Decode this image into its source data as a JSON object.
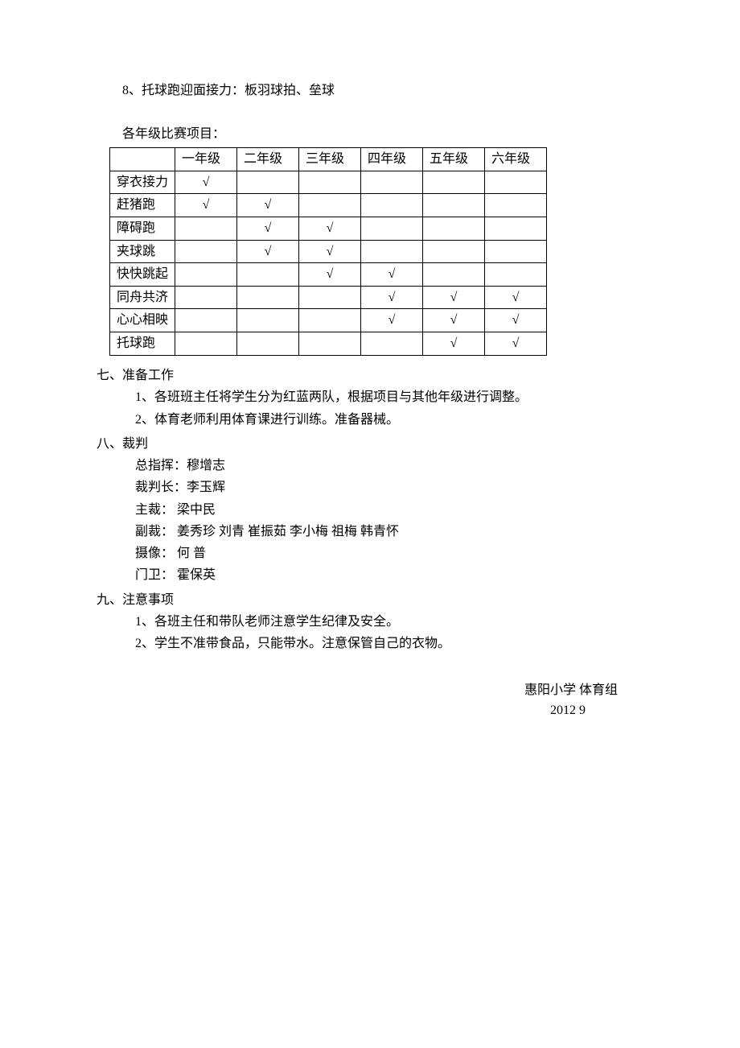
{
  "item8": "8、托球跑迎面接力：板羽球拍、垒球",
  "table_intro": "各年级比赛项目：",
  "table": {
    "headers": [
      "",
      "一年级",
      "二年级",
      "三年级",
      "四年级",
      "五年级",
      "六年级"
    ],
    "rows": [
      {
        "label": "穿衣接力",
        "checks": [
          true,
          false,
          false,
          false,
          false,
          false
        ]
      },
      {
        "label": "赶猪跑",
        "checks": [
          true,
          true,
          false,
          false,
          false,
          false
        ]
      },
      {
        "label": "障碍跑",
        "checks": [
          false,
          true,
          true,
          false,
          false,
          false
        ]
      },
      {
        "label": "夹球跳",
        "checks": [
          false,
          true,
          true,
          false,
          false,
          false
        ]
      },
      {
        "label": "快快跳起",
        "checks": [
          false,
          false,
          true,
          true,
          false,
          false
        ]
      },
      {
        "label": "同舟共济",
        "checks": [
          false,
          false,
          false,
          true,
          true,
          true
        ]
      },
      {
        "label": "心心相映",
        "checks": [
          false,
          false,
          false,
          true,
          true,
          true
        ]
      },
      {
        "label": "托球跑",
        "checks": [
          false,
          false,
          false,
          false,
          true,
          true
        ]
      }
    ],
    "check_mark": "√"
  },
  "section7": {
    "heading": "七、准备工作",
    "items": [
      "1、各班班主任将学生分为红蓝两队，根据项目与其他年级进行调整。",
      "2、体育老师利用体育课进行训练。准备器械。"
    ]
  },
  "section8": {
    "heading": "八、裁判",
    "items": [
      "总指挥：穆增志",
      "裁判长：李玉辉",
      "主裁：   梁中民",
      "副裁：   姜秀珍    刘青   崔振茹    李小梅  祖梅  韩青怀",
      "摄像：     何 普",
      "门卫：    霍保英"
    ]
  },
  "section9": {
    "heading": "九、注意事项",
    "items": [
      "1、各班主任和带队老师注意学生纪律及安全。",
      "2、学生不准带食品，只能带水。注意保管自己的衣物。"
    ]
  },
  "signature": "惠阳小学  体育组",
  "date": "2012    9"
}
